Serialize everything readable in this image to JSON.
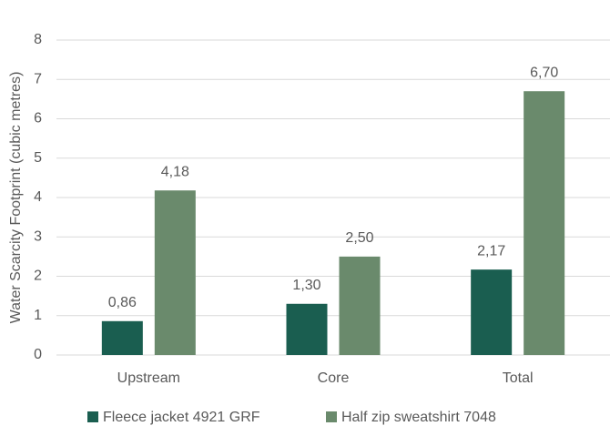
{
  "chart_data": {
    "type": "bar",
    "y_label": "Water Scarcity Footprint  (cubic metres)",
    "categories": [
      "Upstream",
      "Core",
      "Total"
    ],
    "series": [
      {
        "name": "Fleece jacket 4921 GRF",
        "color": "#1a5e50",
        "values": [
          0.86,
          1.3,
          2.17
        ],
        "value_labels": [
          "0,86",
          "1,30",
          "2,17"
        ]
      },
      {
        "name": "Half zip sweatshirt 7048",
        "color": "#6a8a6c",
        "values": [
          4.18,
          2.5,
          6.7
        ],
        "value_labels": [
          "4,18",
          "2,50",
          "6,70"
        ]
      }
    ],
    "ylim": [
      0,
      8
    ],
    "yticks": [
      0,
      1,
      2,
      3,
      4,
      5,
      6,
      7,
      8
    ],
    "grid": true,
    "legend": "bottom"
  }
}
